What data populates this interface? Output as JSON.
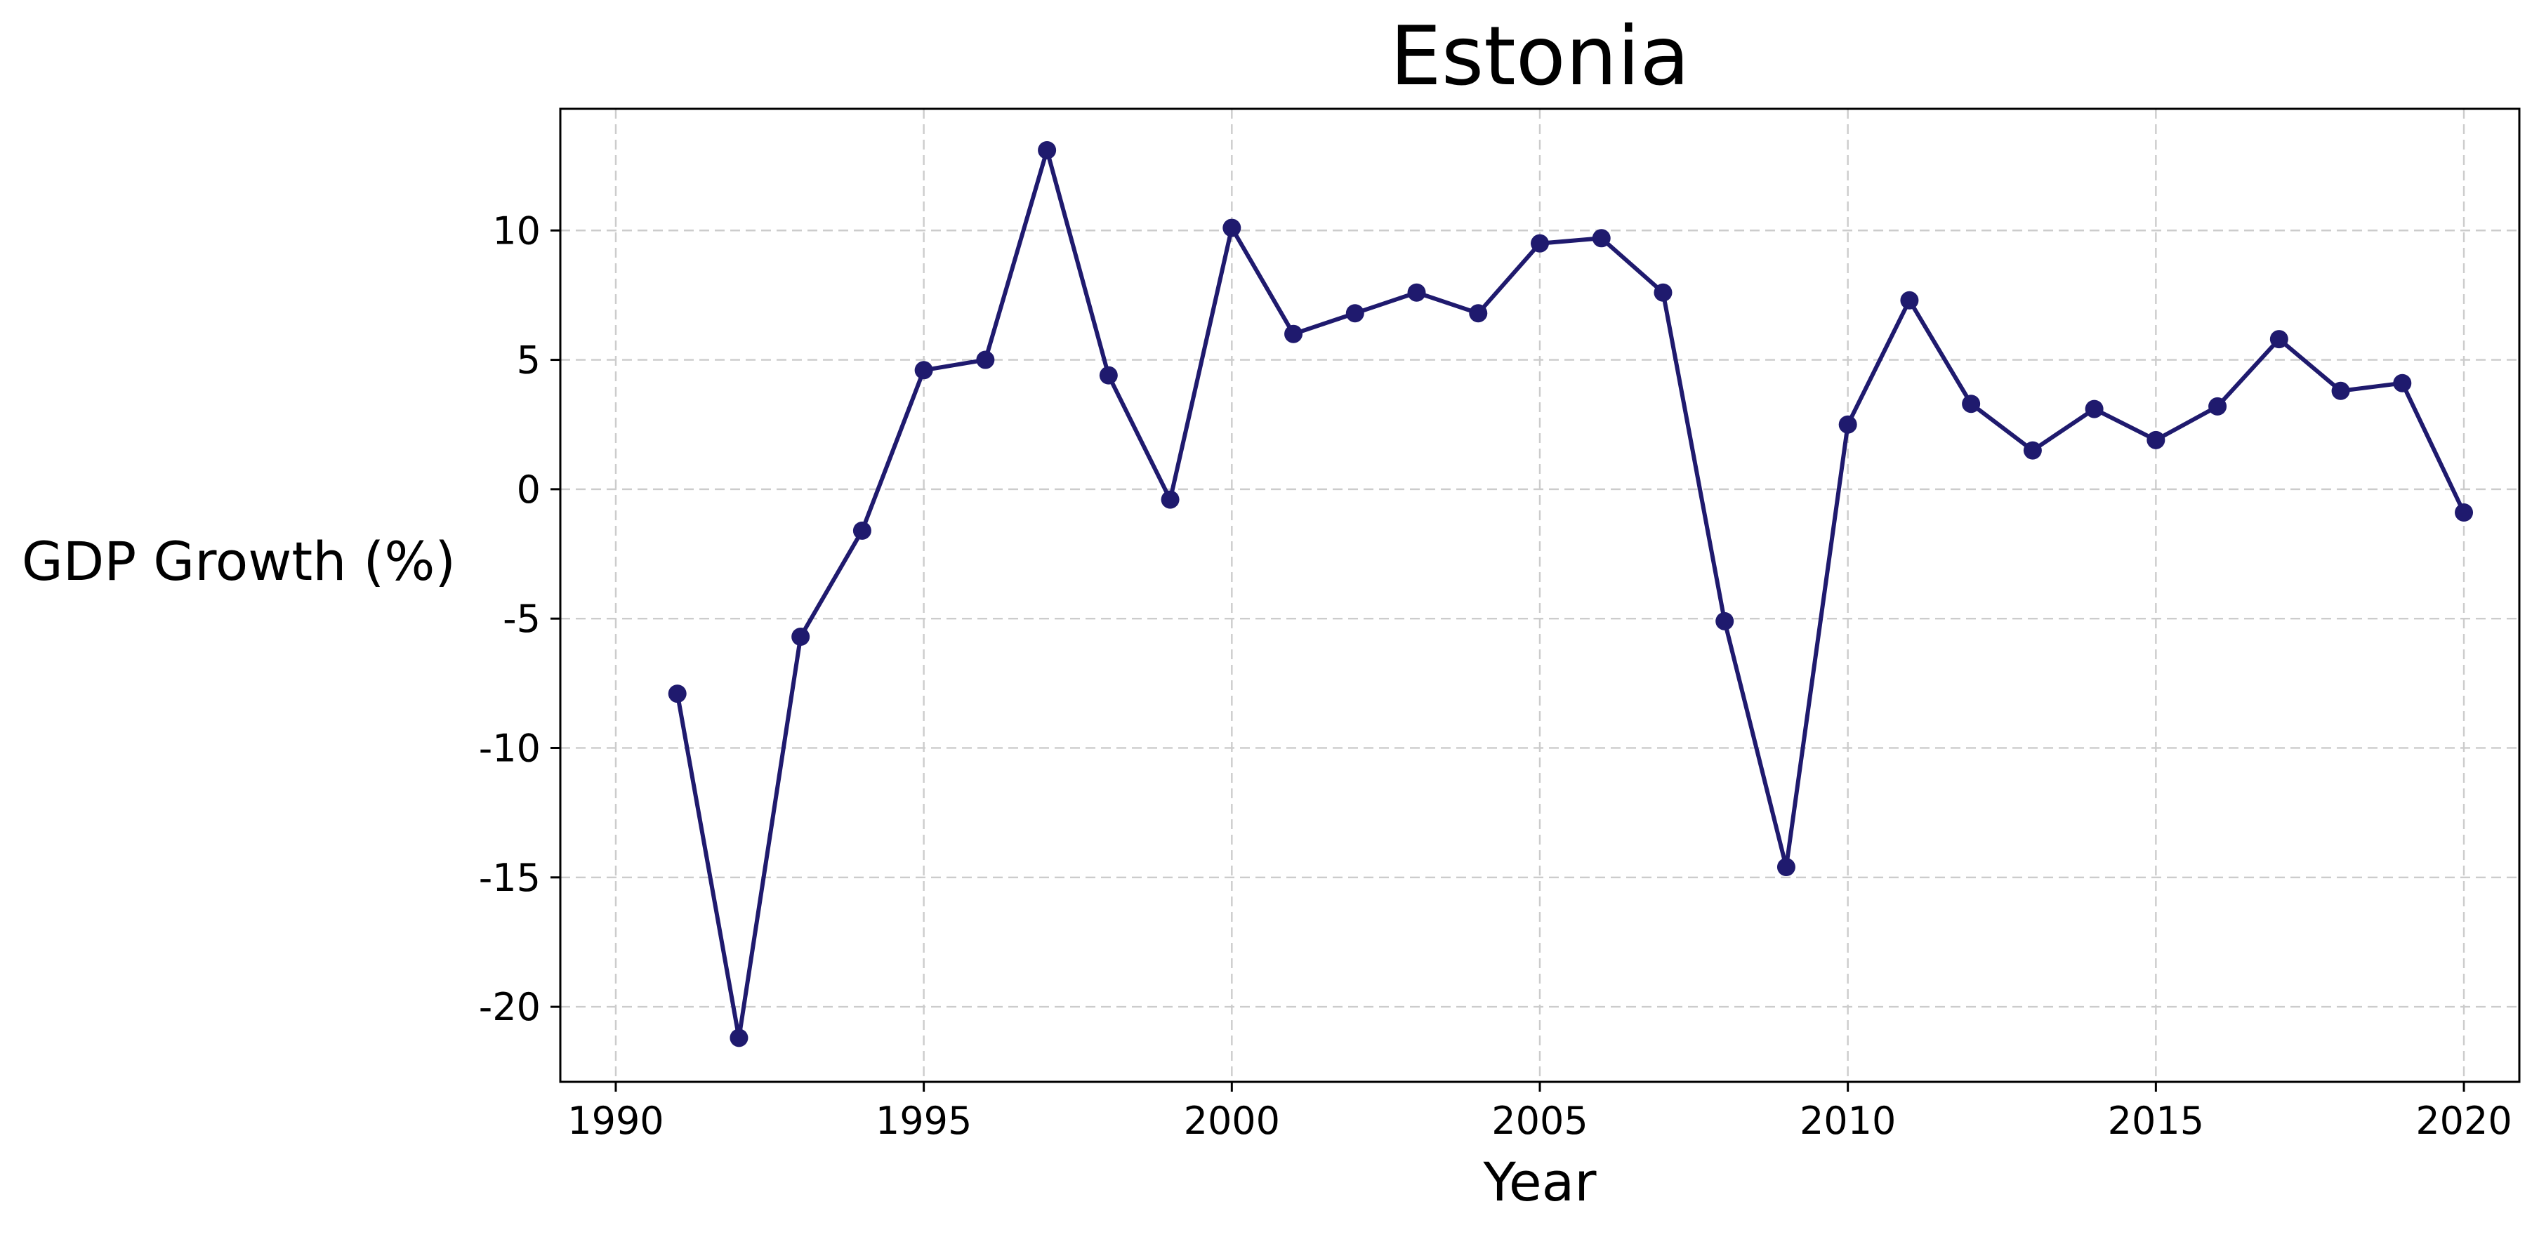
{
  "chart_data": {
    "type": "line",
    "title": "Estonia",
    "xlabel": "Year",
    "ylabel": "GDP Growth (%)",
    "xlim": [
      1989.1,
      2020.9
    ],
    "ylim": [
      -22.9,
      14.7
    ],
    "xticks": [
      1990,
      1995,
      2000,
      2005,
      2010,
      2015,
      2020
    ],
    "yticks": [
      10,
      5,
      0,
      -5,
      -10,
      -15,
      -20
    ],
    "grid": true,
    "legend": "none",
    "line_color": "#1f1a6e",
    "series": [
      {
        "x": [
          1991,
          1992,
          1993,
          1994,
          1995,
          1996,
          1997,
          1998,
          1999,
          2000,
          2001,
          2002,
          2003,
          2004,
          2005,
          2006,
          2007,
          2008,
          2009,
          2010,
          2011,
          2012,
          2013,
          2014,
          2015,
          2016,
          2017,
          2018,
          2019,
          2020
        ],
        "values": [
          -7.9,
          -21.2,
          -5.7,
          -1.6,
          4.6,
          5.0,
          13.1,
          4.4,
          -0.4,
          10.1,
          6.0,
          6.8,
          7.6,
          6.8,
          9.5,
          9.7,
          7.6,
          -5.1,
          -14.6,
          2.5,
          7.3,
          3.3,
          1.5,
          3.1,
          1.9,
          3.2,
          5.8,
          3.8,
          4.1,
          -0.9
        ]
      }
    ]
  }
}
